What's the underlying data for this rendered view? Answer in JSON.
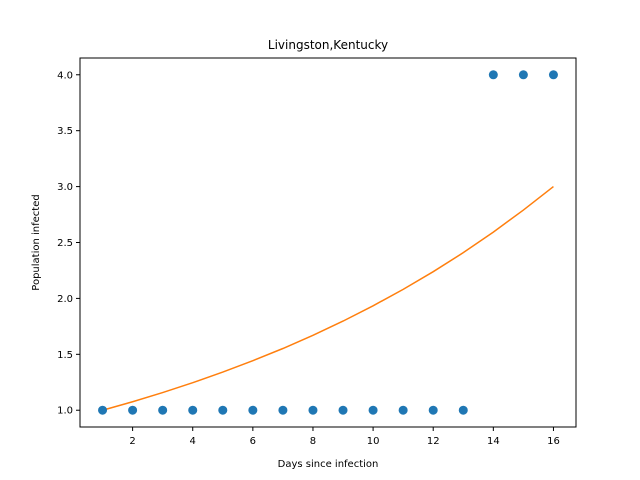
{
  "chart_data": {
    "type": "scatter",
    "title": "Livingston,Kentucky",
    "xlabel": "Days since infection",
    "ylabel": "Population infected",
    "xlim": [
      0.25,
      16.75
    ],
    "ylim": [
      0.85,
      4.15
    ],
    "xticks": [
      2,
      4,
      6,
      8,
      10,
      12,
      14,
      16
    ],
    "yticks": [
      1.0,
      1.5,
      2.0,
      2.5,
      3.0,
      3.5,
      4.0
    ],
    "grid": false,
    "series": [
      {
        "kind": "scatter",
        "color": "#1f77b4",
        "x": [
          1,
          2,
          3,
          4,
          5,
          6,
          7,
          8,
          9,
          10,
          11,
          12,
          13,
          14,
          15,
          16
        ],
        "y": [
          1,
          1,
          1,
          1,
          1,
          1,
          1,
          1,
          1,
          1,
          1,
          1,
          1,
          4,
          4,
          4
        ]
      },
      {
        "kind": "line",
        "color": "#ff7f0e",
        "x": [
          1,
          2,
          3,
          4,
          5,
          6,
          7,
          8,
          9,
          10,
          11,
          12,
          13,
          14,
          15,
          16
        ],
        "y": [
          1.0,
          1.076,
          1.158,
          1.246,
          1.341,
          1.443,
          1.552,
          1.67,
          1.797,
          1.934,
          2.081,
          2.239,
          2.409,
          2.593,
          2.79,
          3.0
        ]
      }
    ]
  }
}
